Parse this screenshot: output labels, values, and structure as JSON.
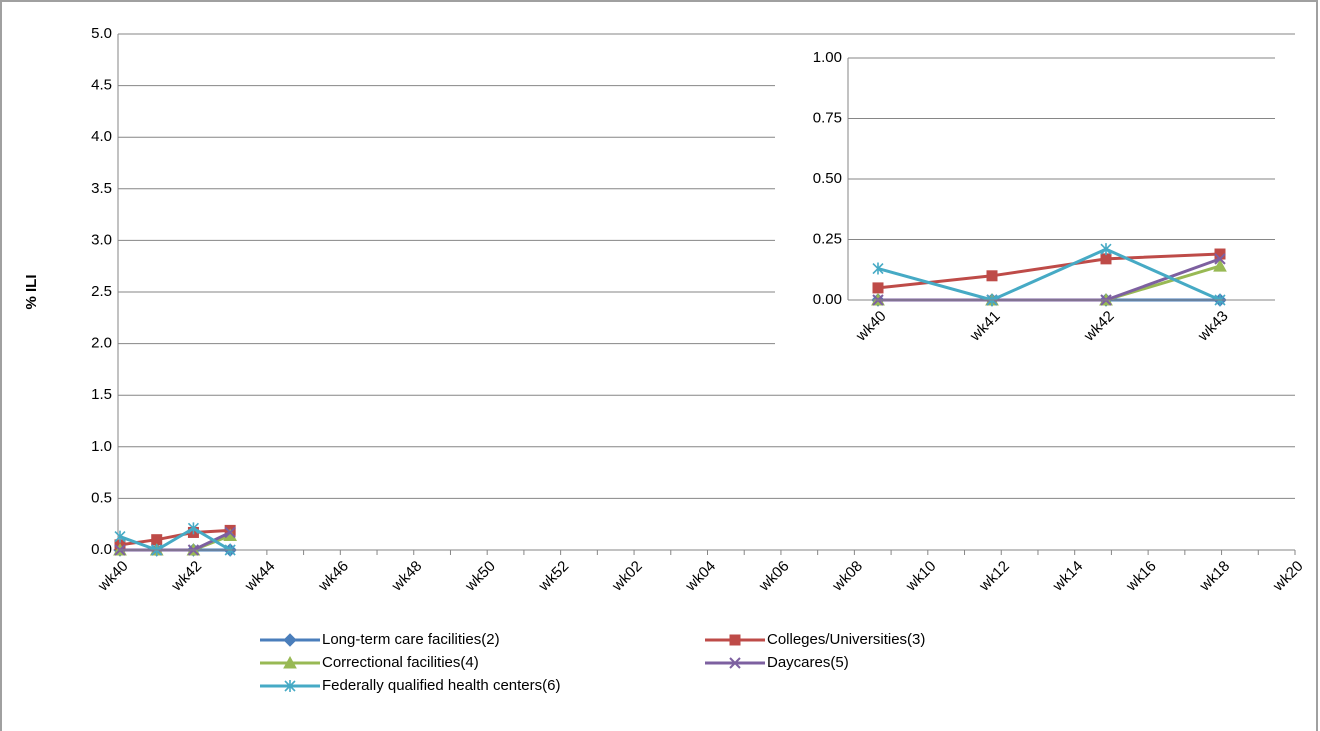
{
  "chart_data": [
    {
      "type": "line",
      "ylabel": "% ILI",
      "categories": [
        "wk40",
        null,
        "wk42",
        null,
        "wk44",
        null,
        "wk46",
        null,
        "wk48",
        null,
        "wk50",
        null,
        "wk52",
        null,
        "wk02",
        null,
        "wk04",
        null,
        "wk06",
        null,
        "wk08",
        null,
        "wk10",
        null,
        "wk12",
        null,
        "wk14",
        null,
        "wk16",
        null,
        "wk18",
        null,
        "wk20"
      ],
      "ylim": [
        0,
        5
      ],
      "yticks": [
        {
          "value": 0,
          "label": "0.0"
        },
        0.5,
        {
          "value": 1,
          "label": "1.0"
        },
        1.5,
        {
          "value": 2,
          "label": "2.0"
        },
        2.5,
        {
          "value": 3,
          "label": "3.0"
        },
        3.5,
        {
          "value": 4,
          "label": "4.0"
        },
        4.5,
        {
          "value": 5,
          "label": "5.0"
        }
      ],
      "grid": true,
      "series": [
        {
          "name": "Long-term care facilities(2)",
          "color": "#4a7ebb",
          "values": [
            0,
            0,
            0,
            0,
            null,
            null,
            null,
            null,
            null,
            null,
            null,
            null,
            null,
            null,
            null,
            null,
            null,
            null,
            null,
            null,
            null,
            null,
            null,
            null,
            null,
            null,
            null,
            null,
            null,
            null,
            null,
            null,
            null
          ]
        },
        {
          "name": "Colleges/Universities(3)",
          "color": "#be4b48",
          "values": [
            0.05,
            0.1,
            0.17,
            0.19,
            null,
            null,
            null,
            null,
            null,
            null,
            null,
            null,
            null,
            null,
            null,
            null,
            null,
            null,
            null,
            null,
            null,
            null,
            null,
            null,
            null,
            null,
            null,
            null,
            null,
            null,
            null,
            null,
            null
          ]
        },
        {
          "name": "Correctional facilities(4)",
          "color": "#98b954",
          "values": [
            0,
            0,
            0,
            0.14,
            null,
            null,
            null,
            null,
            null,
            null,
            null,
            null,
            null,
            null,
            null,
            null,
            null,
            null,
            null,
            null,
            null,
            null,
            null,
            null,
            null,
            null,
            null,
            null,
            null,
            null,
            null,
            null,
            null
          ]
        },
        {
          "name": "Daycares(5)",
          "color": "#7d60a0",
          "values": [
            0,
            0,
            0,
            0.17,
            null,
            null,
            null,
            null,
            null,
            null,
            null,
            null,
            null,
            null,
            null,
            null,
            null,
            null,
            null,
            null,
            null,
            null,
            null,
            null,
            null,
            null,
            null,
            null,
            null,
            null,
            null,
            null,
            null
          ]
        },
        {
          "name": "Federally qualified health centers(6)",
          "color": "#46aac5",
          "values": [
            0.13,
            0,
            0.21,
            0,
            null,
            null,
            null,
            null,
            null,
            null,
            null,
            null,
            null,
            null,
            null,
            null,
            null,
            null,
            null,
            null,
            null,
            null,
            null,
            null,
            null,
            null,
            null,
            null,
            null,
            null,
            null,
            null,
            null
          ]
        }
      ]
    },
    {
      "type": "line",
      "categories": [
        "wk40",
        "wk41",
        "wk42",
        "wk43"
      ],
      "ylim": [
        0,
        1
      ],
      "yticks": [
        {
          "value": 0,
          "label": "0.00"
        },
        {
          "value": 0.25,
          "label": "0.25"
        },
        {
          "value": 0.5,
          "label": "0.50"
        },
        {
          "value": 0.75,
          "label": "0.75"
        },
        {
          "value": 1,
          "label": "1.00"
        }
      ],
      "grid": true,
      "series": [
        {
          "color": "#4a7ebb",
          "values": [
            0,
            0,
            0,
            0
          ]
        },
        {
          "color": "#be4b48",
          "values": [
            0.05,
            0.1,
            0.17,
            0.19
          ]
        },
        {
          "color": "#98b954",
          "values": [
            0,
            0,
            0,
            0.14
          ]
        },
        {
          "color": "#7d60a0",
          "values": [
            0,
            0,
            0,
            0.17
          ]
        },
        {
          "color": "#46aac5",
          "values": [
            0.13,
            0,
            0.21,
            0
          ]
        }
      ]
    }
  ]
}
